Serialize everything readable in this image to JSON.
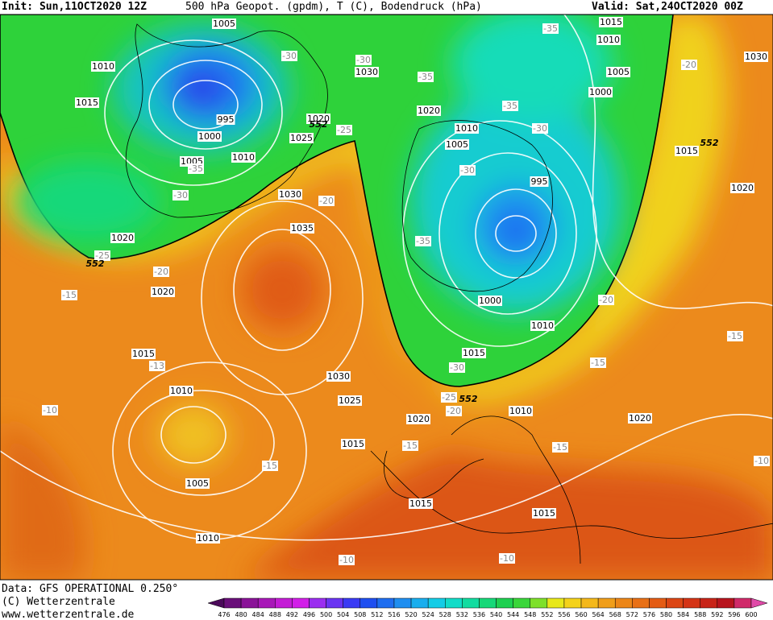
{
  "header": {
    "init": "Init: Sun,11OCT2020 12Z",
    "title": "500 hPa Geopot. (gpdm), T (C), Bodendruck (hPa)",
    "valid": "Valid: Sat,24OCT2020 00Z"
  },
  "footer": {
    "source": "Data: GFS OPERATIONAL 0.250°",
    "copyright": "(C) Wetterzentrale",
    "url": "www.wetterzentrale.de"
  },
  "isobar_labels": [
    "1005",
    "1010",
    "1015",
    "995",
    "1000",
    "1005",
    "1010",
    "1020",
    "1025",
    "1030",
    "1035",
    "1020",
    "1020",
    "1015",
    "1010",
    "1030",
    "1025",
    "1020",
    "1015",
    "1005",
    "1010",
    "1015",
    "1015",
    "1010",
    "1020",
    "1015",
    "1010",
    "1000",
    "995",
    "1005",
    "1010",
    "1020",
    "1030",
    "1015",
    "1010",
    "1005",
    "1000",
    "1015",
    "1020",
    "1030"
  ],
  "temperature_labels": [
    "-30",
    "-30",
    "-35",
    "-35",
    "-35",
    "-30",
    "-30",
    "-35",
    "-30",
    "-25",
    "-20",
    "-35",
    "-25",
    "-20",
    "-15",
    "-13",
    "-10",
    "-15",
    "-15",
    "-20",
    "-25",
    "-30",
    "-20",
    "-15",
    "-15",
    "-15",
    "-10",
    "-10",
    "-10",
    "-20"
  ],
  "contour_labels": [
    "552",
    "552",
    "552",
    "552"
  ],
  "colorbar": {
    "labels": [
      "476",
      "480",
      "484",
      "488",
      "492",
      "496",
      "500",
      "504",
      "508",
      "512",
      "516",
      "520",
      "524",
      "528",
      "532",
      "536",
      "540",
      "544",
      "548",
      "552",
      "556",
      "560",
      "564",
      "568",
      "572",
      "576",
      "580",
      "584",
      "588",
      "592",
      "596",
      "600"
    ],
    "colors": [
      "#4b0a5a",
      "#6a0f7a",
      "#8a1398",
      "#a818b8",
      "#c41cd6",
      "#d21fe8",
      "#9b2ef0",
      "#6a34f2",
      "#3a3af4",
      "#1f4ff0",
      "#1f6ef0",
      "#1f8ef0",
      "#19aeee",
      "#14cce6",
      "#12dcc8",
      "#12dca0",
      "#16d878",
      "#1ed050",
      "#3ad63a",
      "#7ee02a",
      "#e8e81a",
      "#f4d21a",
      "#f4b81a",
      "#f09e1a",
      "#ec8618",
      "#e87016",
      "#e45c14",
      "#dc4614",
      "#d43416",
      "#c82418",
      "#b8141e",
      "#d02a6a",
      "#e04aa8"
    ]
  }
}
